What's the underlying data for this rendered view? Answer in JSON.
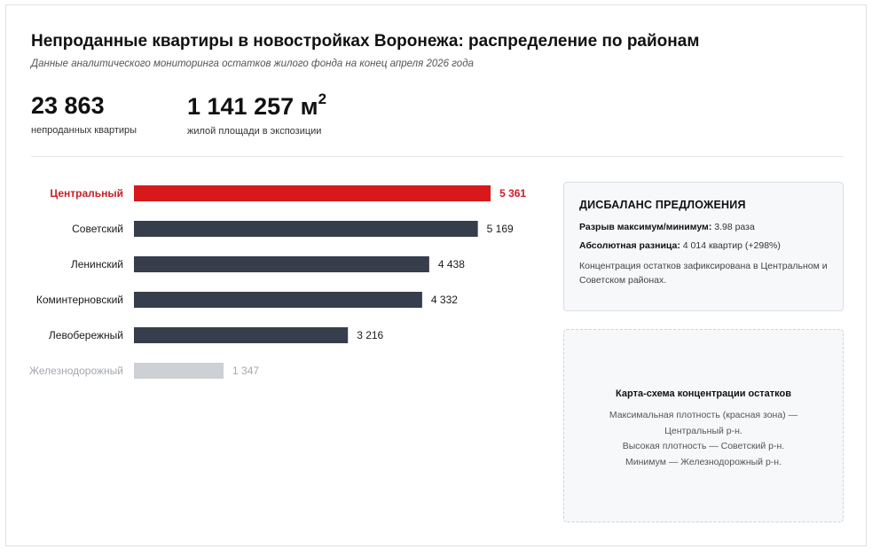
{
  "header": {
    "title": "Непроданные квартиры в новостройках Воронежа: распределение по районам",
    "subtitle": "Данные аналитического мониторинга остатков жилого фонда на конец апреля 2026 года"
  },
  "kpis": {
    "apartments_value": "23 863",
    "apartments_label": "непроданных квартиры",
    "area_value": "1 141 257 м",
    "area_sup": "2",
    "area_label": "жилой площади в экспозиции"
  },
  "chart_data": {
    "type": "bar",
    "orientation": "horizontal",
    "categories": [
      "Центральный",
      "Советский",
      "Ленинский",
      "Коминтерновский",
      "Левобережный",
      "Железнодорожный"
    ],
    "values": [
      5361,
      5169,
      4438,
      4332,
      3216,
      1347
    ],
    "value_labels": [
      "5 361",
      "5 169",
      "4 438",
      "4 332",
      "3 216",
      "1 347"
    ],
    "xlim": [
      0,
      6000
    ],
    "grid": false,
    "colors": {
      "highlight": "#d7191c",
      "default": "#363d4b",
      "muted": "#cdd0d5",
      "highlight_label": "#c62026",
      "default_label": "#1a1a1a",
      "muted_label": "#a3a7ad"
    },
    "styles": [
      "highlight",
      "default",
      "default",
      "default",
      "default",
      "muted"
    ]
  },
  "card": {
    "title": "ДИСБАЛАНС ПРЕДЛОЖЕНИЯ",
    "gap_label": "Разрыв максимум/минимум:",
    "gap_value": " 3.98 раза",
    "diff_label": "Абсолютная разница:",
    "diff_value": " 4 014 квартир (+298%)",
    "note": "Концентрация остатков зафиксирована в Центральном и Советском районах."
  },
  "map": {
    "title": "Карта-схема концентрации остатков",
    "line1": "Максимальная плотность (красная зона) —",
    "line2": "Центральный р-н.",
    "line3": "Высокая плотность — Советский р-н.",
    "line4": "Минимум — Железнодорожный р-н."
  }
}
